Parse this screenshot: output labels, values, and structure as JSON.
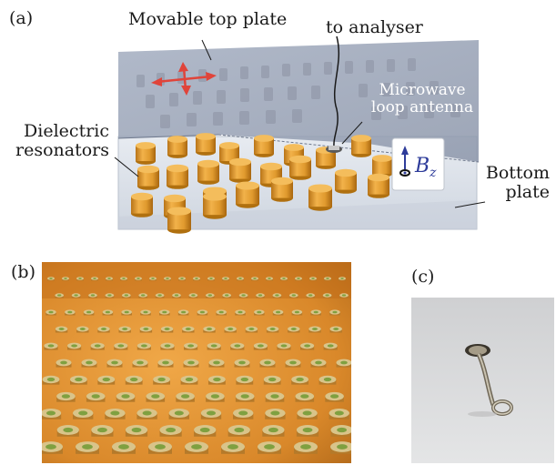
{
  "panel_labels": {
    "a": "(a)",
    "b": "(b)",
    "c": "(c)"
  },
  "annotations": {
    "movable_top_plate": "Movable top plate",
    "to_analyser": "to analyser",
    "microwave_line1": "Microwave",
    "microwave_line2": "loop antenna",
    "dielectric_line1": "Dielectric",
    "dielectric_line2": "resonators",
    "bottom_line1": "Bottom",
    "bottom_line2": "plate"
  },
  "field_symbol": {
    "letter": "B",
    "subscript": "z"
  },
  "colors": {
    "top_plate": "#9aa4b8",
    "bottom_plate": "#dfe4ec",
    "resonator": "#e3a236",
    "resonator_dark": "#b97a1c",
    "arrow": "#e0443a",
    "photo_background": "#d98a2c",
    "antenna_metal": "#8a8270"
  }
}
